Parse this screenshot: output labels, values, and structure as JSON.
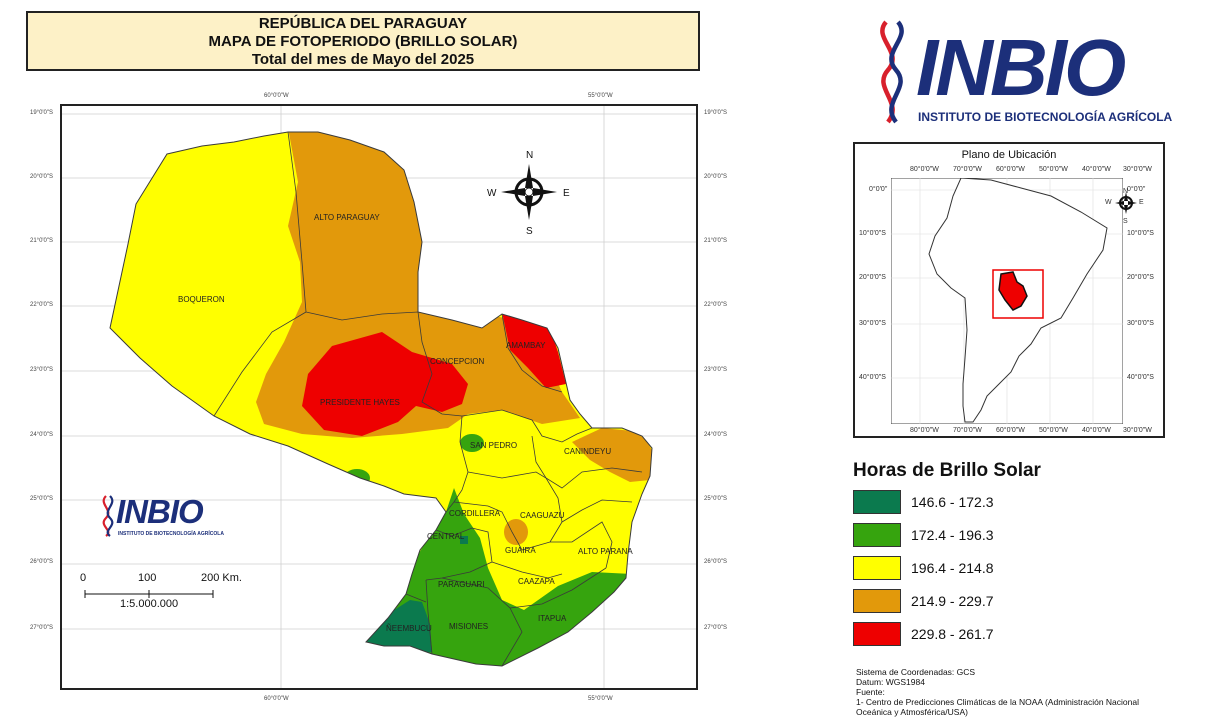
{
  "title": {
    "line1": "REPÚBLICA DEL PARAGUAY",
    "line2": "MAPA DE FOTOPERIODO (BRILLO SOLAR)",
    "line3": "Total del mes de Mayo del 2025"
  },
  "map": {
    "lon_ticks": [
      "60°0'0\"W",
      "55°0'0\"W"
    ],
    "lat_ticks": [
      "19°0'0\"S",
      "20°0'0\"S",
      "21°0'0\"S",
      "22°0'0\"S",
      "23°0'0\"S",
      "24°0'0\"S",
      "25°0'0\"S",
      "26°0'0\"S",
      "27°0'0\"S"
    ],
    "departments": [
      "ALTO PARAGUAY",
      "BOQUERON",
      "CONCEPCION",
      "AMAMBAY",
      "PRESIDENTE HAYES",
      "SAN PEDRO",
      "CANINDEYU",
      "CORDILLERA",
      "CAAGUAZU",
      "CENTRAL",
      "GUAIRA",
      "ALTO PARANA",
      "PARAGUARI",
      "CAAZAPA",
      "ÑEEMBUCU",
      "MISIONES",
      "ITAPUA"
    ],
    "compass": {
      "n": "N",
      "s": "S",
      "e": "E",
      "w": "W"
    },
    "scale": {
      "labels": [
        "0",
        "100",
        "200 Km."
      ],
      "ratio": "1:5.000.000"
    },
    "logo": {
      "brand": "INBIO",
      "subtitle": "INSTITUTO DE BIOTECNOLOGÍA AGRÍCOLA"
    }
  },
  "logo": {
    "brand": "INBIO",
    "subtitle": "INSTITUTO DE BIOTECNOLOGÍA AGRÍCOLA"
  },
  "location_map": {
    "title": "Plano de Ubicación",
    "lon_ticks": [
      "80°0'0\"W",
      "70°0'0\"W",
      "60°0'0\"W",
      "50°0'0\"W",
      "40°0'0\"W",
      "30°0'0\"W"
    ],
    "lat_ticks": [
      "0°0'0\"",
      "10°0'0\"S",
      "20°0'0\"S",
      "30°0'0\"S",
      "40°0'0\"S"
    ],
    "compass": {
      "n": "N",
      "s": "S",
      "e": "E",
      "w": "W"
    }
  },
  "legend": {
    "title": "Horas de Brillo Solar",
    "classes": [
      {
        "label": "146.6 - 172.3",
        "color": "#0b7a4e"
      },
      {
        "label": "172.4 - 196.3",
        "color": "#36a40e"
      },
      {
        "label": "196.4 - 214.8",
        "color": "#ffff00"
      },
      {
        "label": "214.9 - 229.7",
        "color": "#e2990b"
      },
      {
        "label": "229.8 - 261.7",
        "color": "#ee0000"
      }
    ]
  },
  "notes": {
    "line1": "Sistema de Coordenadas: GCS",
    "line2": "Datum: WGS1984",
    "line3": "Fuente:",
    "line4": "1- Centro de Predicciones Climáticas de la NOAA (Administración Nacional",
    "line5": "Oceánica y Atmosférica/USA)"
  }
}
